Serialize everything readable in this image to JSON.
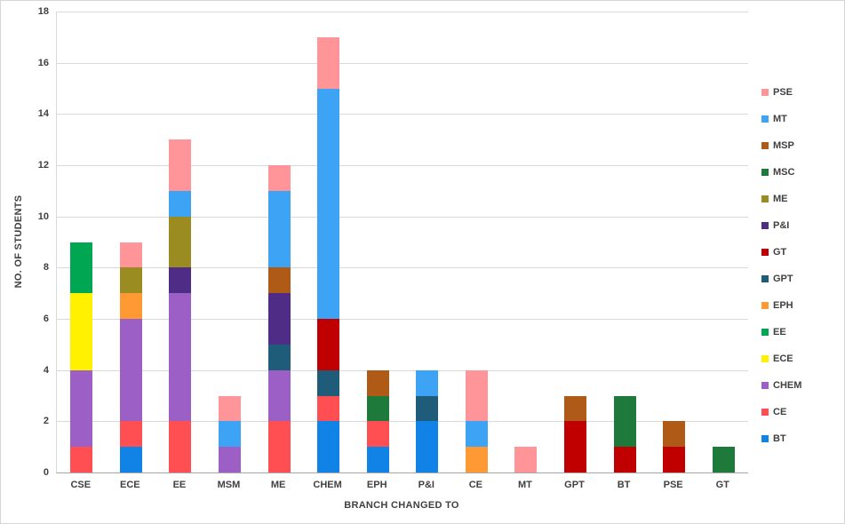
{
  "figure": {
    "background": "#FFFFFF",
    "border_color": "#D6D6D6",
    "grid_color": "#D9D9D9",
    "axis_color": "#A6A6A6",
    "text_color": "#404040"
  },
  "chart_data": {
    "type": "bar",
    "stacked": true,
    "title": "",
    "xlabel": "BRANCH CHANGED TO",
    "ylabel": "NO. OF STUDENTS",
    "ylim": [
      0,
      18
    ],
    "ytick_step": 2,
    "grid": true,
    "legend_position": "right",
    "categories": [
      "CSE",
      "ECE",
      "EE",
      "MSM",
      "ME",
      "CHEM",
      "EPH",
      "P&I",
      "CE",
      "MT",
      "GPT",
      "BT",
      "PSE",
      "GT"
    ],
    "series": [
      {
        "name": "BT",
        "color": "#1283E6",
        "values": [
          0,
          1,
          0,
          0,
          0,
          2,
          1,
          2,
          0,
          0,
          0,
          0,
          0,
          0
        ]
      },
      {
        "name": "CE",
        "color": "#FF4F52",
        "values": [
          1,
          1,
          2,
          0,
          2,
          1,
          1,
          0,
          0,
          0,
          0,
          0,
          0,
          0
        ]
      },
      {
        "name": "CHEM",
        "color": "#9B5FC6",
        "values": [
          3,
          4,
          5,
          1,
          2,
          0,
          0,
          0,
          0,
          0,
          0,
          0,
          0,
          0
        ]
      },
      {
        "name": "ECE",
        "color": "#FFF100",
        "values": [
          3,
          0,
          0,
          0,
          0,
          0,
          0,
          0,
          0,
          0,
          0,
          0,
          0,
          0
        ]
      },
      {
        "name": "EE",
        "color": "#00A651",
        "values": [
          2,
          0,
          0,
          0,
          0,
          0,
          0,
          0,
          0,
          0,
          0,
          0,
          0,
          0
        ]
      },
      {
        "name": "EPH",
        "color": "#FF9933",
        "values": [
          0,
          1,
          0,
          0,
          0,
          0,
          0,
          0,
          1,
          0,
          0,
          0,
          0,
          0
        ]
      },
      {
        "name": "GPT",
        "color": "#1F5C7A",
        "values": [
          0,
          0,
          0,
          0,
          1,
          1,
          0,
          1,
          0,
          0,
          0,
          0,
          0,
          0
        ]
      },
      {
        "name": "GT",
        "color": "#C00000",
        "values": [
          0,
          0,
          0,
          0,
          0,
          2,
          0,
          0,
          0,
          0,
          2,
          1,
          1,
          0
        ]
      },
      {
        "name": "P&I",
        "color": "#4F2D87",
        "values": [
          0,
          0,
          1,
          0,
          2,
          0,
          0,
          0,
          0,
          0,
          0,
          0,
          0,
          0
        ]
      },
      {
        "name": "ME",
        "color": "#9A8C20",
        "values": [
          0,
          1,
          2,
          0,
          0,
          0,
          0,
          0,
          0,
          0,
          0,
          0,
          0,
          0
        ]
      },
      {
        "name": "MSC",
        "color": "#1E7A3B",
        "values": [
          0,
          0,
          0,
          0,
          0,
          0,
          1,
          0,
          0,
          0,
          0,
          2,
          0,
          1
        ]
      },
      {
        "name": "MSP",
        "color": "#B05A17",
        "values": [
          0,
          0,
          0,
          0,
          1,
          0,
          1,
          0,
          0,
          0,
          1,
          0,
          1,
          0
        ]
      },
      {
        "name": "MT",
        "color": "#3DA3F5",
        "values": [
          0,
          0,
          1,
          1,
          3,
          9,
          0,
          1,
          1,
          0,
          0,
          0,
          0,
          0
        ]
      },
      {
        "name": "PSE",
        "color": "#FF9598",
        "values": [
          0,
          1,
          2,
          1,
          1,
          2,
          0,
          0,
          2,
          1,
          0,
          0,
          0,
          0
        ]
      }
    ],
    "legend": [
      "PSE",
      "MT",
      "MSP",
      "MSC",
      "ME",
      "P&I",
      "GT",
      "GPT",
      "EPH",
      "EE",
      "ECE",
      "CHEM",
      "CE",
      "BT"
    ],
    "totals": {
      "CSE": 9,
      "ECE": 9,
      "EE": 13,
      "MSM": 3,
      "ME": 12,
      "CHEM": 17,
      "EPH": 4,
      "P&I": 4,
      "CE": 4,
      "MT": 1,
      "GPT": 3,
      "BT": 3,
      "PSE": 2,
      "GT": 1
    }
  }
}
